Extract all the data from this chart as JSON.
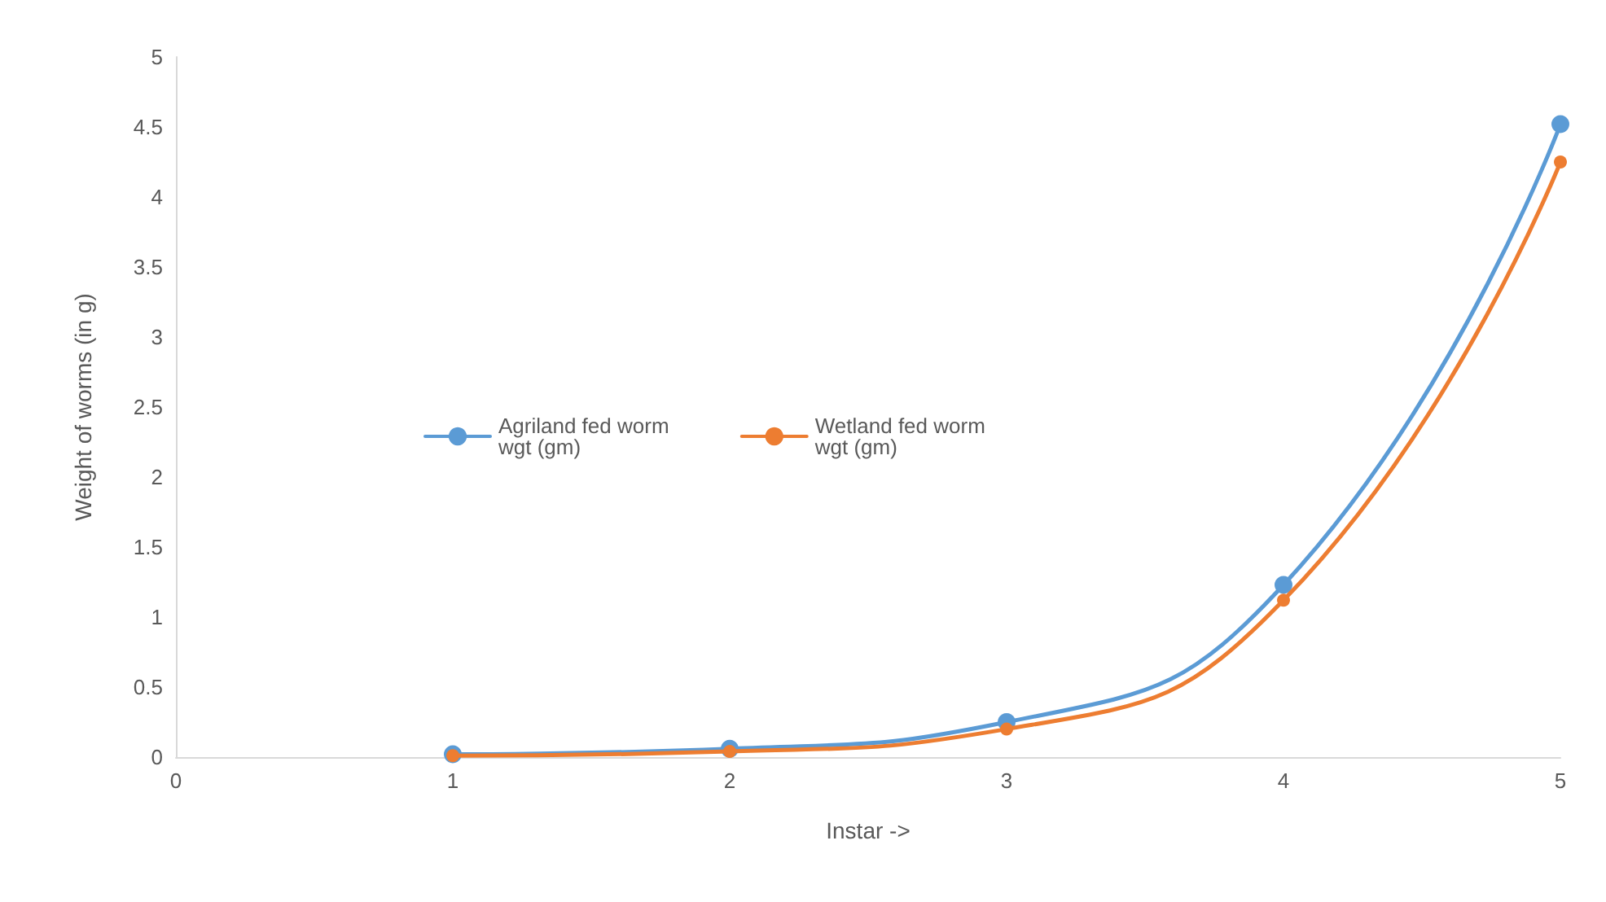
{
  "chart_data": {
    "type": "line",
    "xlabel": "Instar ->",
    "ylabel": "Weight of worms (in g)",
    "x": [
      1,
      2,
      3,
      4,
      5
    ],
    "series": [
      {
        "name": "Agriland fed worm wgt (gm)",
        "color": "#5b9bd5",
        "values": [
          0.02,
          0.06,
          0.25,
          1.23,
          4.52
        ]
      },
      {
        "name": "Wetland fed worm wgt (gm)",
        "color": "#ed7d31",
        "values": [
          0.01,
          0.04,
          0.2,
          1.12,
          4.25
        ]
      }
    ],
    "xlim": [
      0,
      5
    ],
    "xticks": [
      0,
      1,
      2,
      3,
      4,
      5
    ],
    "ylim": [
      0,
      5
    ],
    "yticks": [
      0,
      0.5,
      1,
      1.5,
      2,
      2.5,
      3,
      3.5,
      4,
      4.5,
      5
    ],
    "grid": false,
    "legend": "left",
    "marker": "circle",
    "line_style": "solid"
  }
}
